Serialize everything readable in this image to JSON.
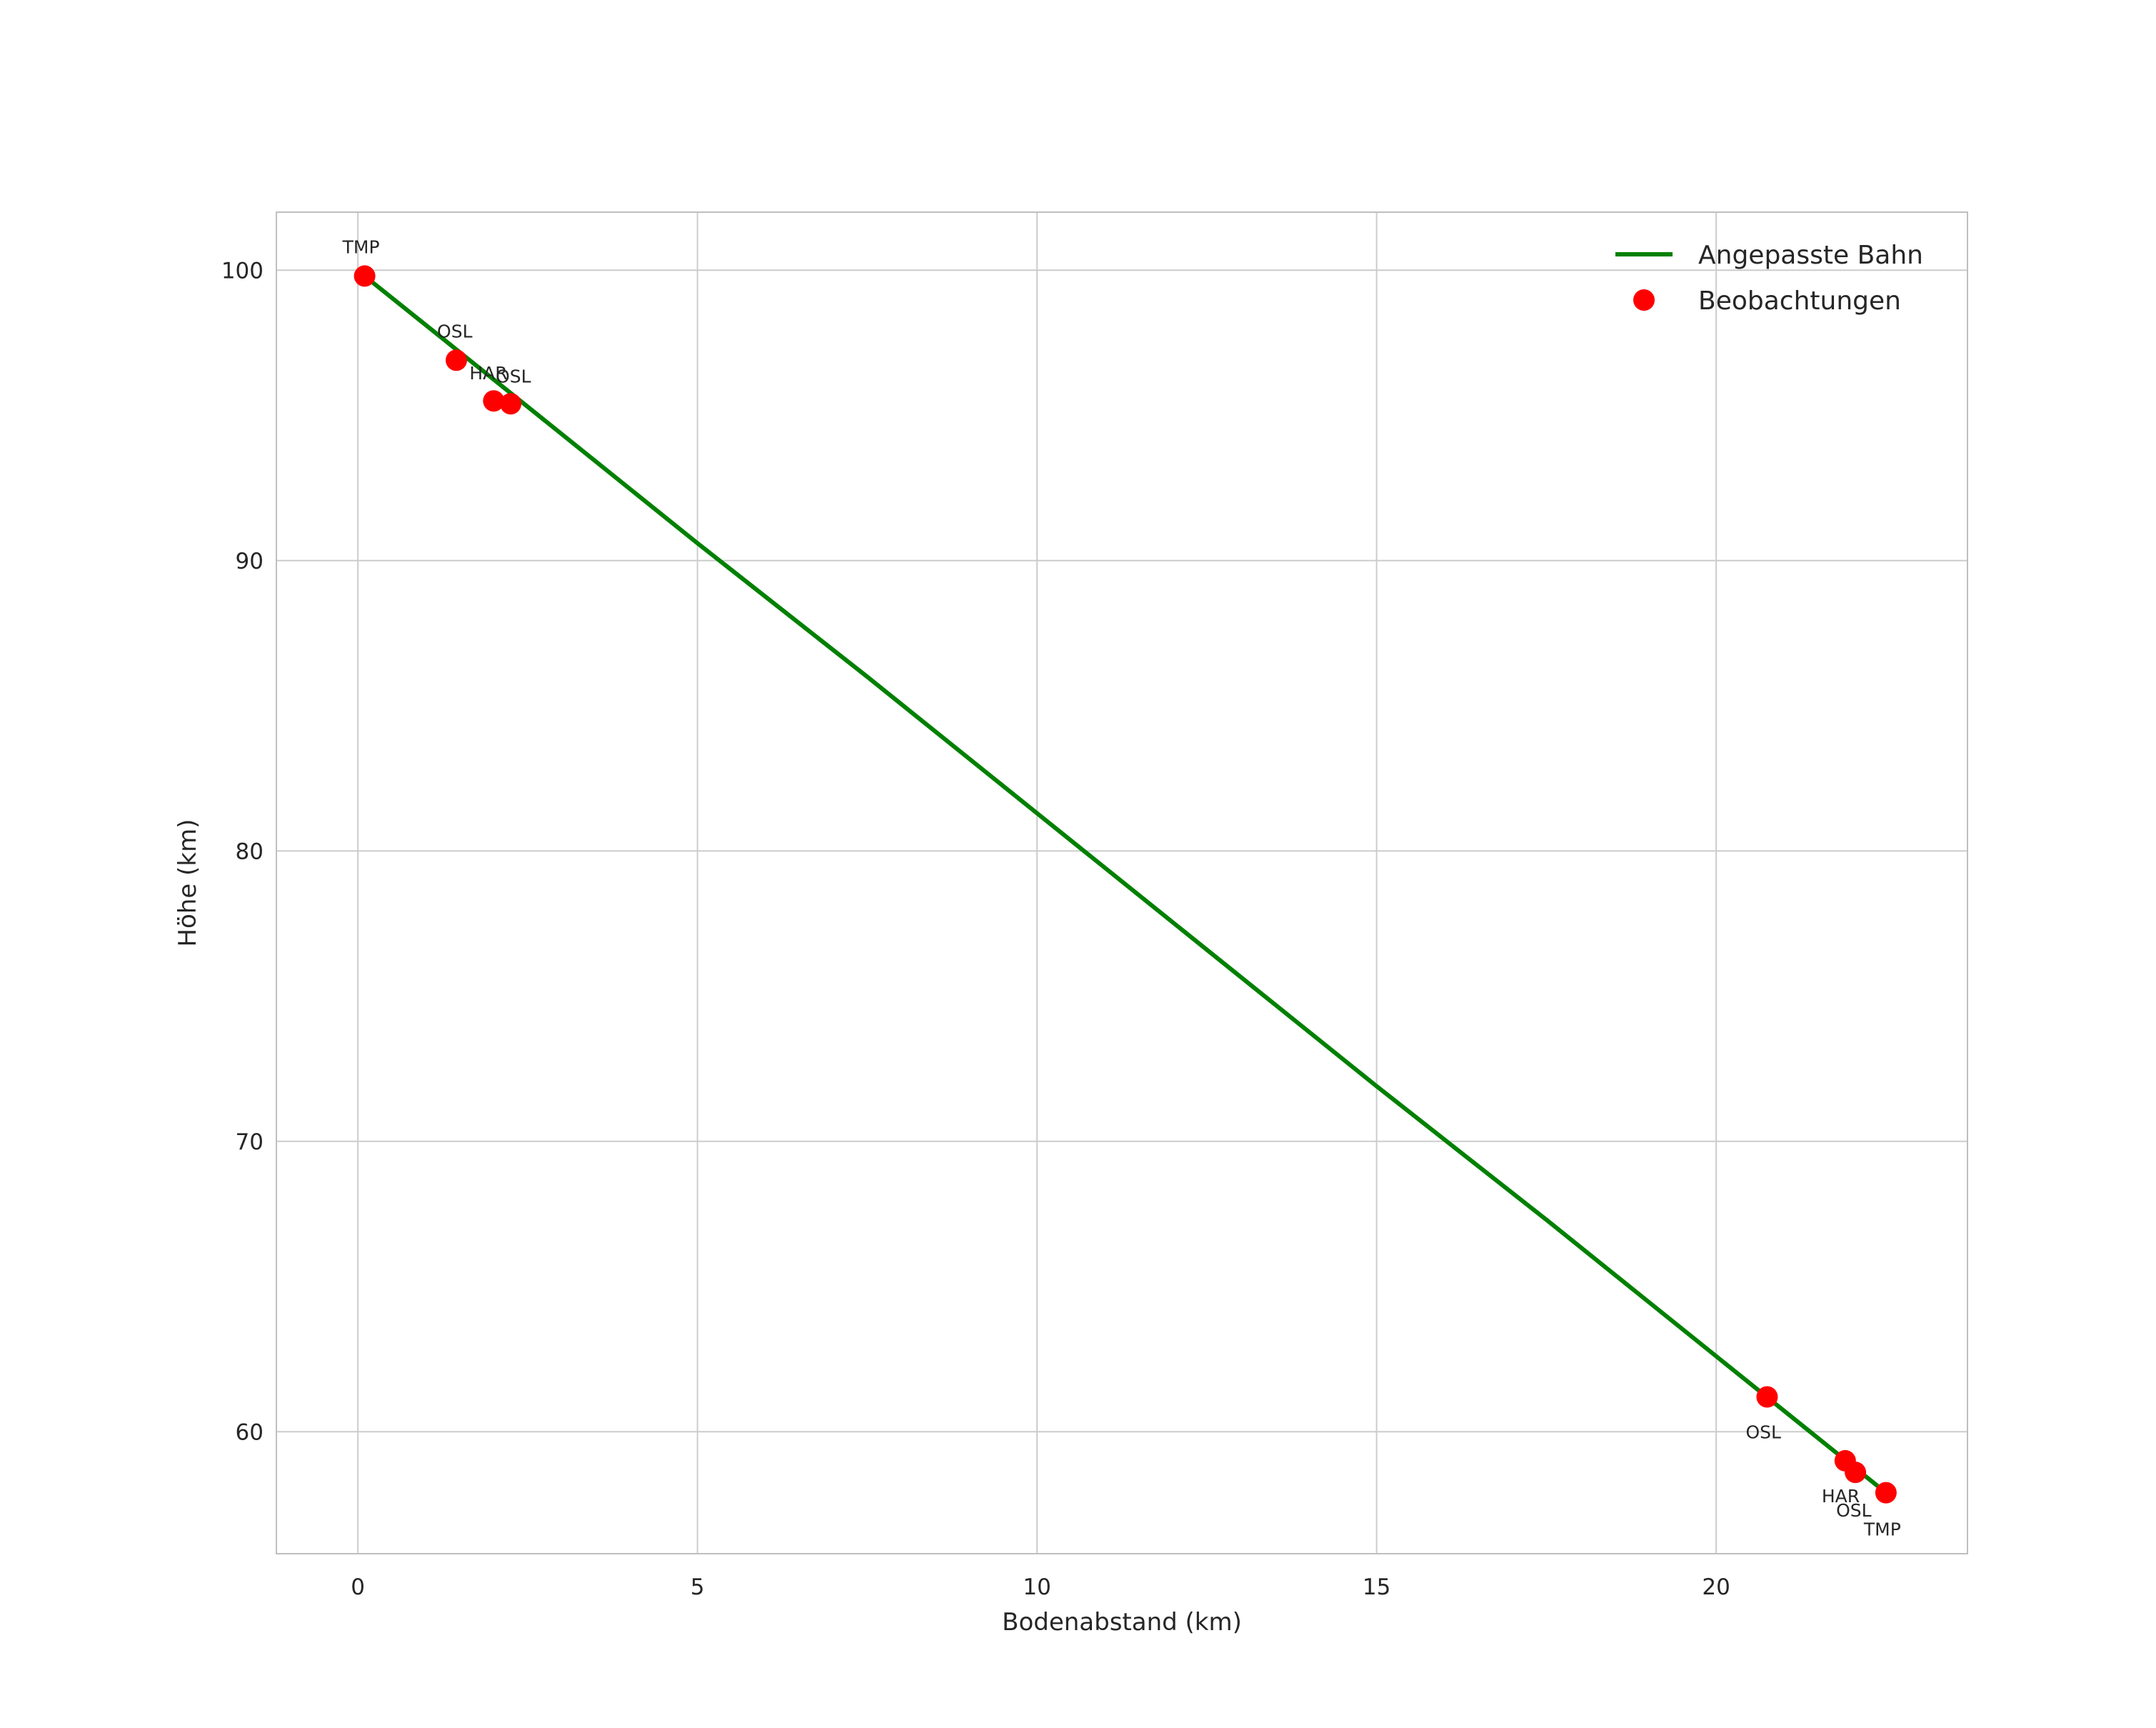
{
  "chart_data": {
    "type": "scatter",
    "title": "",
    "xlabel": "Bodenabstand (km)",
    "ylabel": "Höhe (km)",
    "xlim": [
      -1.2,
      23.7
    ],
    "ylim": [
      55.8,
      102.0
    ],
    "xticks": [
      0,
      5,
      10,
      15,
      20
    ],
    "yticks": [
      60,
      70,
      80,
      90,
      100
    ],
    "grid": true,
    "legend_position": "upper right",
    "colors": {
      "line": "#008000",
      "points": "#ff0000",
      "grid": "#cccccc",
      "frame": "#bfbfbf",
      "text": "#262626",
      "background": "#ffffff"
    },
    "legend": {
      "entries": [
        {
          "label": "Angepasste Bahn",
          "marker": "line",
          "color": "#008000"
        },
        {
          "label": "Beobachtungen",
          "marker": "point",
          "color": "#ff0000"
        }
      ]
    },
    "series": [
      {
        "name": "Angepasste Bahn",
        "type": "line",
        "color": "#008000",
        "x": [
          0.1,
          2.5,
          5.0,
          7.5,
          10.0,
          12.5,
          15.0,
          17.5,
          20.0,
          22.5
        ],
        "y": [
          99.8,
          95.3,
          90.6,
          86.0,
          81.3,
          76.6,
          71.9,
          67.3,
          62.6,
          57.9
        ]
      },
      {
        "name": "Beobachtungen",
        "type": "scatter",
        "color": "#ff0000",
        "points": [
          {
            "x": 0.1,
            "y": 99.8,
            "label": "TMP",
            "label_dx": -31,
            "label_dy": -32
          },
          {
            "x": 1.45,
            "y": 96.9,
            "label": "OSL",
            "label_dx": -27,
            "label_dy": -32
          },
          {
            "x": 2.0,
            "y": 95.5,
            "label": "HAR",
            "label_dx": -34,
            "label_dy": -30
          },
          {
            "x": 2.25,
            "y": 95.4,
            "label": "OSL",
            "label_dx": -21,
            "label_dy": -30
          },
          {
            "x": 20.75,
            "y": 61.2,
            "label": "OSL",
            "label_dx": -30,
            "label_dy": 58
          },
          {
            "x": 21.9,
            "y": 59.0,
            "label": "HAR",
            "label_dx": -33,
            "label_dy": 58
          },
          {
            "x": 22.05,
            "y": 58.6,
            "label": "OSL",
            "label_dx": -27,
            "label_dy": 62
          },
          {
            "x": 22.5,
            "y": 57.9,
            "label": "TMP",
            "label_dx": -31,
            "label_dy": 60
          }
        ]
      }
    ]
  }
}
